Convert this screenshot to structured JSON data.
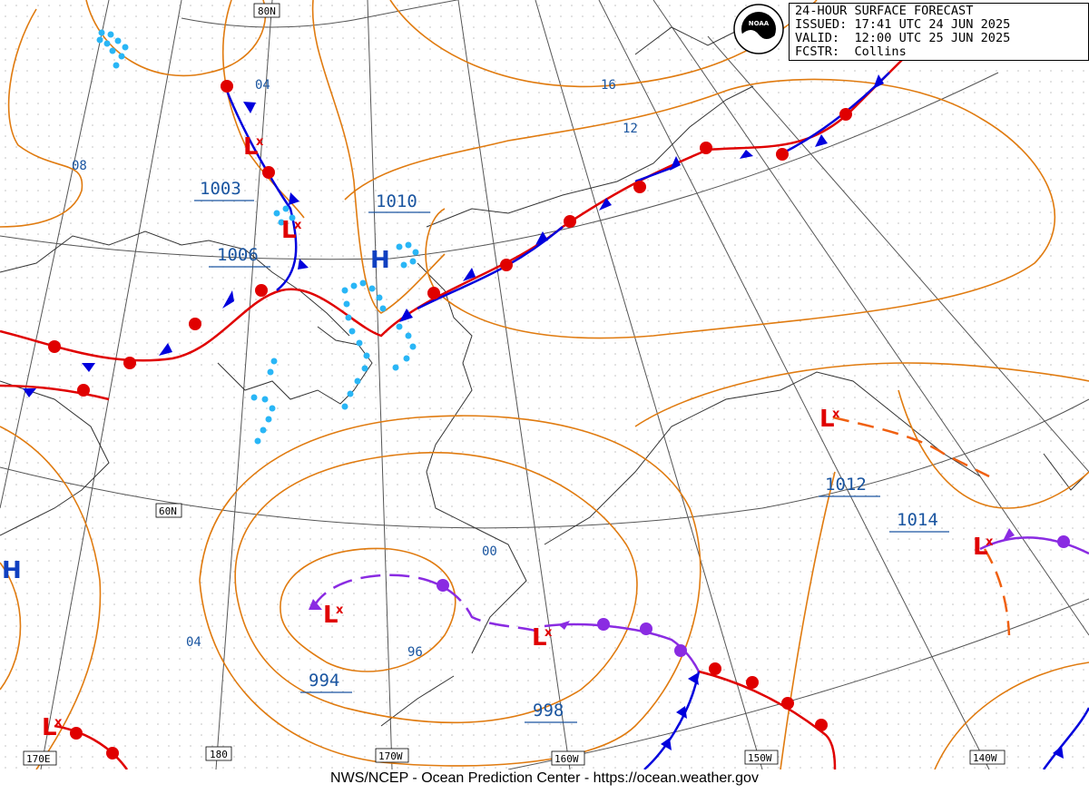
{
  "header": {
    "title": "24-HOUR SURFACE FORECAST",
    "issued": "ISSUED: 17:41 UTC 24 JUN 2025",
    "valid": "VALID:  12:00 UTC 25 JUN 2025",
    "forecaster": "FCSTR:  Collins"
  },
  "logo": {
    "text": "NOAA"
  },
  "footer": {
    "credit": "NWS/NCEP - Ocean Prediction Center - https://ocean.weather.gov"
  },
  "colors": {
    "isobar": "#e07b10",
    "grid": "#555555",
    "coast": "#333333",
    "warm_front": "#e00000",
    "cold_front": "#0000dd",
    "occluded_front": "#8a2be2",
    "trough": "#f06010",
    "fog": "#29b6f6",
    "high": "#1040c0",
    "low": "#e00000",
    "pressure_label": "#1a55a0"
  },
  "grid_labels": {
    "lat_80": "80N",
    "lat_60": "60N",
    "lon_170e": "170E",
    "lon_180": "180",
    "lon_170w": "170W",
    "lon_160w": "160W",
    "lon_150w": "150W",
    "lon_140w": "140W"
  },
  "pressure_centers": {
    "h_left": {
      "type": "H",
      "value": ""
    },
    "h_central": {
      "type": "H",
      "value": "1010"
    },
    "l_chukchi": {
      "type": "L",
      "value": "1003"
    },
    "l_siberia": {
      "type": "L",
      "value": "1006"
    },
    "l_bering": {
      "type": "L",
      "value": "994"
    },
    "l_peninsula": {
      "type": "L",
      "value": "998"
    },
    "l_gulf": {
      "type": "L",
      "value": "1012"
    },
    "l_east": {
      "type": "L",
      "value": "1014"
    },
    "l_southwest": {
      "type": "L",
      "value": ""
    }
  },
  "isobar_labels": {
    "i04_north": "04",
    "i08": "08",
    "i16": "16",
    "i12": "12",
    "i00": "00",
    "i96": "96",
    "i04_south": "04"
  }
}
